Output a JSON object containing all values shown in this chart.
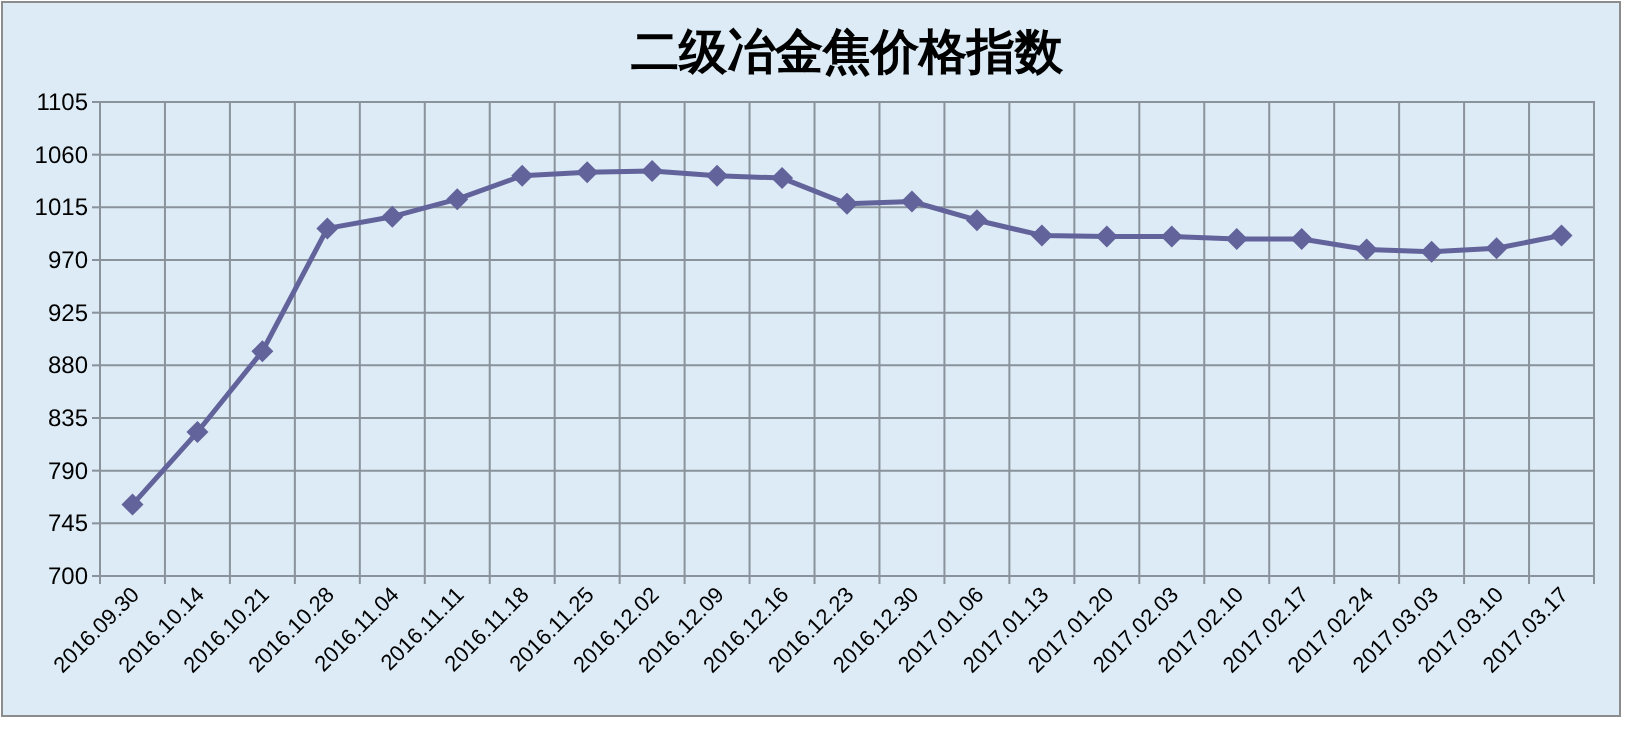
{
  "chart_data": {
    "type": "line",
    "title": "二级冶金焦价格指数",
    "categories": [
      "2016.09.30",
      "2016.10.14",
      "2016.10.21",
      "2016.10.28",
      "2016.11.04",
      "2016.11.11",
      "2016.11.18",
      "2016.11.25",
      "2016.12.02",
      "2016.12.09",
      "2016.12.16",
      "2016.12.23",
      "2016.12.30",
      "2017.01.06",
      "2017.01.13",
      "2017.01.20",
      "2017.02.03",
      "2017.02.10",
      "2017.02.17",
      "2017.02.24",
      "2017.03.03",
      "2017.03.10",
      "2017.03.17"
    ],
    "series": [
      {
        "color": "#62639b",
        "values": [
          761,
          823,
          892,
          997,
          1007,
          1022,
          1042,
          1045,
          1046,
          1042,
          1040,
          1018,
          1020,
          1004,
          991,
          990,
          990,
          988,
          988,
          979,
          977,
          980,
          991
        ]
      }
    ],
    "ylim": [
      700,
      1105
    ],
    "yticks": [
      700,
      745,
      790,
      835,
      880,
      925,
      970,
      1015,
      1060,
      1105
    ],
    "grid": true,
    "marker": "diamond",
    "line_style": "solid"
  }
}
